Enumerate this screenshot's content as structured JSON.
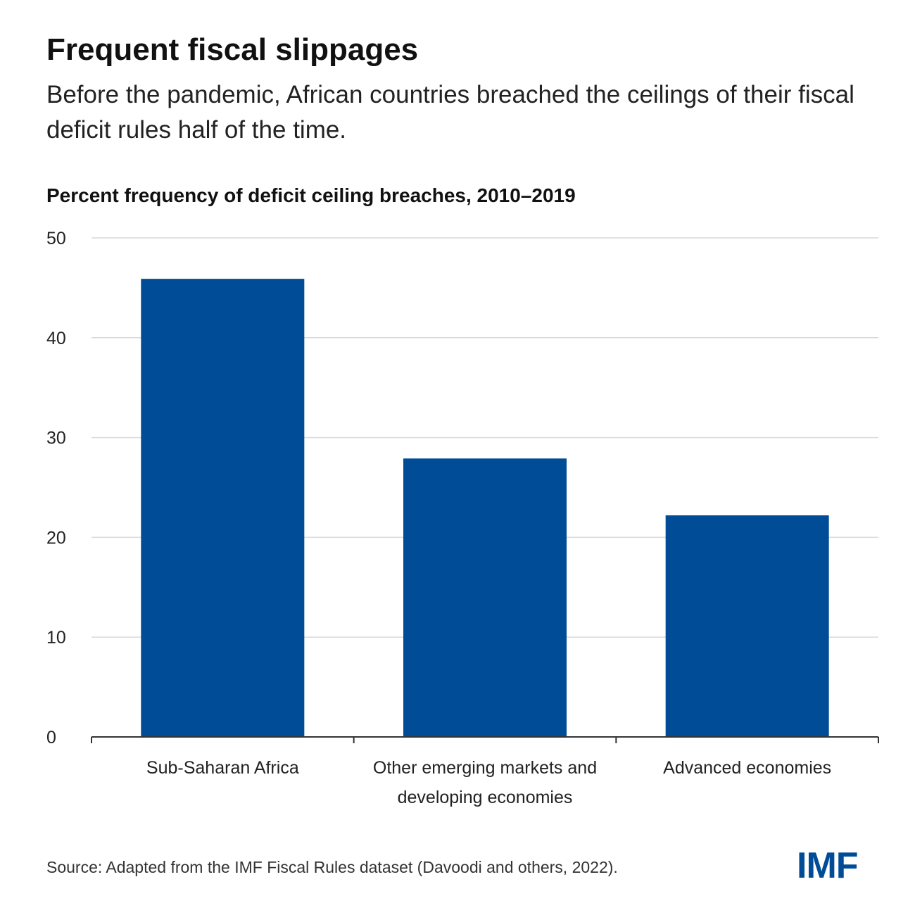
{
  "header": {
    "title": "Frequent fiscal slippages",
    "subtitle": "Before the pandemic, African countries breached the ceilings of their fiscal deficit rules half of the time."
  },
  "chart_data": {
    "type": "bar",
    "title": "Percent frequency of deficit ceiling breaches, 2010–2019",
    "categories": [
      [
        "Sub-Saharan Africa"
      ],
      [
        "Other emerging markets and",
        "developing economies"
      ],
      [
        "Advanced economies"
      ]
    ],
    "values": [
      45.9,
      27.9,
      22.2
    ],
    "ylim": [
      0,
      50
    ],
    "yticks": [
      0,
      10,
      20,
      30,
      40,
      50
    ],
    "grid": true,
    "bar_color": "#004c97"
  },
  "footer": {
    "source": "Source: Adapted from the IMF Fiscal Rules dataset (Davoodi and others, 2022).",
    "logo_text": "IMF"
  },
  "colors": {
    "bar": "#004c97",
    "grid": "#d9d9d9",
    "axis": "#333333",
    "logo": "#004c97"
  }
}
